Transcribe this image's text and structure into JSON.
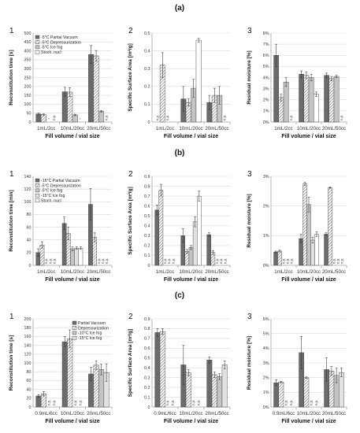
{
  "figure": {
    "sections": [
      "(a)",
      "(b)",
      "(c)"
    ],
    "panel_numbers": [
      "1",
      "2",
      "3"
    ],
    "x_axis_title": "Fill volume / vial size"
  },
  "series_styles": {
    "Partial Vacuum": "dark",
    "Depressurization": "hatch",
    "Ice fog": "light",
    "Stoch. nucl": "white",
    "-10°C Ice fog": "light",
    "-15°C Ice fog": "lighter"
  },
  "chart_data": [
    {
      "type": "bar",
      "section": "(a)",
      "panel": "1",
      "ylabel": "Reconstitution time [s]",
      "ylim": [
        0,
        500
      ],
      "yticks": [
        "0",
        "50",
        "100",
        "150",
        "200",
        "250",
        "300",
        "350",
        "400",
        "450",
        "500"
      ],
      "categories": [
        "1mL/2cc",
        "10mL/20cc",
        "20mL/50cc"
      ],
      "series": [
        {
          "name": "-5°C Partial Vacuum",
          "style": "dark",
          "values": [
            45,
            170,
            380
          ],
          "errors": [
            5,
            25,
            50
          ]
        },
        {
          "name": "-5°C Depressurization",
          "style": "hatch",
          "values": [
            42,
            168,
            372
          ],
          "errors": [
            4,
            25,
            30
          ]
        },
        {
          "name": "-5°C Ice fog",
          "style": "light",
          "values": [
            null,
            40,
            60
          ],
          "errors": [
            null,
            4,
            5
          ]
        },
        {
          "name": "Stoch. nucl",
          "style": "white",
          "values": [
            null,
            null,
            null
          ],
          "errors": [
            null,
            null,
            null
          ]
        }
      ],
      "labels": [
        {
          "series": 2,
          "cat": 0,
          "text": "*"
        },
        {
          "series": 3,
          "cat": 0,
          "text": "n.p."
        },
        {
          "series": 3,
          "cat": 1,
          "text": "*"
        },
        {
          "series": 3,
          "cat": 2,
          "text": "n.p."
        }
      ],
      "legend": "top-left"
    },
    {
      "type": "bar",
      "section": "(a)",
      "panel": "2",
      "ylabel": "Specific Surface Area [m²/g]",
      "ylim": [
        0,
        0.5
      ],
      "yticks": [
        "0",
        "0.1",
        "0.2",
        "0.3",
        "0.4",
        "0.5"
      ],
      "categories": [
        "1mL/2cc",
        "10mL/20cc",
        "20mL/50cc"
      ],
      "series": [
        {
          "name": "-5°C Partial Vacuum",
          "style": "dark",
          "values": [
            null,
            0.13,
            0.11
          ],
          "errors": [
            null,
            0.07,
            0.04
          ]
        },
        {
          "name": "-5°C Depressurization",
          "style": "hatch",
          "values": [
            0.32,
            0.11,
            0.15
          ],
          "errors": [
            0.07,
            0.02,
            0.04
          ]
        },
        {
          "name": "-5°C Ice fog",
          "style": "light",
          "values": [
            null,
            0.19,
            0.15
          ],
          "errors": [
            null,
            0.05,
            0.05
          ]
        },
        {
          "name": "Stoch. nucl",
          "style": "white",
          "values": [
            null,
            0.46,
            null
          ],
          "errors": [
            null,
            0.01,
            null
          ]
        }
      ],
      "labels": [
        {
          "series": 0,
          "cat": 0,
          "text": "n.p."
        },
        {
          "series": 2,
          "cat": 0,
          "text": "n.p."
        },
        {
          "series": 3,
          "cat": 2,
          "text": "n.p."
        }
      ]
    },
    {
      "type": "bar",
      "section": "(a)",
      "panel": "3",
      "ylabel": "Residual moisture [%]",
      "ylim": [
        0,
        8
      ],
      "yticks": [
        "0%",
        "1%",
        "2%",
        "3%",
        "4%",
        "5%",
        "6%",
        "7%",
        "8%"
      ],
      "categories": [
        "1mL/2cc",
        "10mL/20cc",
        "20mL/50cc"
      ],
      "series": [
        {
          "name": "-5°C Partial Vacuum",
          "style": "dark",
          "values": [
            6.0,
            4.3,
            4.2
          ],
          "errors": [
            1.0,
            0.3,
            0.2
          ]
        },
        {
          "name": "-5°C Depressurization",
          "style": "hatch",
          "values": [
            2.2,
            4.2,
            3.9
          ],
          "errors": [
            0.3,
            0.3,
            0.2
          ]
        },
        {
          "name": "-5°C Ice fog",
          "style": "light",
          "values": [
            3.6,
            4.0,
            4.1
          ],
          "errors": [
            0.4,
            0.3,
            0.1
          ]
        },
        {
          "name": "Stoch. nucl",
          "style": "white",
          "values": [
            null,
            2.5,
            null
          ],
          "errors": [
            null,
            0.2,
            null
          ]
        }
      ],
      "labels": [
        {
          "series": 3,
          "cat": 0,
          "text": "n.p."
        },
        {
          "series": 3,
          "cat": 2,
          "text": "n.p."
        }
      ]
    },
    {
      "type": "bar",
      "section": "(b)",
      "panel": "1",
      "ylabel": "Reconstitution time [min]",
      "ylim": [
        0,
        140
      ],
      "yticks": [
        "0",
        "20",
        "40",
        "60",
        "80",
        "100",
        "120",
        "140"
      ],
      "categories": [
        "1mL/2cc",
        "10mL/20cc",
        "20mL/50cc"
      ],
      "series": [
        {
          "name": "-15°C Partial Vacuum",
          "style": "dark",
          "values": [
            20,
            66,
            96
          ],
          "errors": [
            6,
            10,
            25
          ]
        },
        {
          "name": "-5°C Depressurization",
          "style": "hatch",
          "values": [
            32,
            50,
            44
          ],
          "errors": [
            5,
            10,
            7
          ]
        },
        {
          "name": "-5°C Ice fog",
          "style": "light",
          "values": [
            null,
            26,
            null
          ],
          "errors": [
            null,
            3,
            null
          ]
        },
        {
          "name": "-15°C Ice fog",
          "style": "lighter",
          "values": [
            null,
            27,
            null
          ],
          "errors": [
            null,
            2,
            null
          ]
        },
        {
          "name": "Stoch. nucl",
          "style": "white",
          "values": [
            null,
            27,
            null
          ],
          "errors": [
            null,
            2,
            null
          ]
        }
      ],
      "labels": [
        {
          "series": 2,
          "cat": 0,
          "text": "n.p."
        },
        {
          "series": 3,
          "cat": 0,
          "text": "n.p."
        },
        {
          "series": 4,
          "cat": 0,
          "text": "n.p."
        },
        {
          "series": 2,
          "cat": 2,
          "text": "n.p."
        },
        {
          "series": 3,
          "cat": 2,
          "text": "n.p."
        },
        {
          "series": 4,
          "cat": 2,
          "text": "n.p."
        }
      ],
      "legend": "top-left"
    },
    {
      "type": "bar",
      "section": "(b)",
      "panel": "2",
      "ylabel": "Specific Surface Area [m²/g]",
      "ylim": [
        0,
        0.9
      ],
      "yticks": [
        "0",
        "0.1",
        "0.2",
        "0.3",
        "0.4",
        "0.5",
        "0.6",
        "0.7",
        "0.8",
        "0.9"
      ],
      "categories": [
        "1mL/2cc",
        "10mL/20cc",
        "20mL/50cc"
      ],
      "series": [
        {
          "name": "-15°C Partial Vacuum",
          "style": "dark",
          "values": [
            0.56,
            0.3,
            0.31
          ],
          "errors": [
            0.05,
            0.07,
            0.02
          ]
        },
        {
          "name": "-5°C Depressurization",
          "style": "hatch",
          "values": [
            0.76,
            0.14,
            0.13
          ],
          "errors": [
            0.06,
            0.02,
            0.02
          ]
        },
        {
          "name": "-5°C Ice fog",
          "style": "light",
          "values": [
            null,
            0.18,
            null
          ],
          "errors": [
            null,
            0.02,
            null
          ]
        },
        {
          "name": "-15°C Ice fog",
          "style": "lighter",
          "values": [
            null,
            0.44,
            null
          ],
          "errors": [
            null,
            0.05,
            null
          ]
        },
        {
          "name": "Stoch. nucl",
          "style": "white",
          "values": [
            null,
            0.7,
            null
          ],
          "errors": [
            null,
            0.05,
            null
          ]
        }
      ],
      "labels": [
        {
          "series": 2,
          "cat": 0,
          "text": "n.p."
        },
        {
          "series": 3,
          "cat": 0,
          "text": "n.p."
        },
        {
          "series": 4,
          "cat": 0,
          "text": "n.p."
        },
        {
          "series": 2,
          "cat": 2,
          "text": "n.p."
        },
        {
          "series": 3,
          "cat": 2,
          "text": "n.p."
        },
        {
          "series": 4,
          "cat": 2,
          "text": "n.p."
        }
      ]
    },
    {
      "type": "bar",
      "section": "(b)",
      "panel": "3",
      "ylabel": "Residual moisture [%]",
      "ylim": [
        0,
        3
      ],
      "yticks": [
        "0%",
        "1%",
        "2%",
        "3%"
      ],
      "categories": [
        "1mL/2cc",
        "10mL/20cc",
        "20mL/50cc"
      ],
      "series": [
        {
          "name": "-15°C Partial Vacuum",
          "style": "dark",
          "values": [
            0.45,
            0.9,
            1.05
          ],
          "errors": [
            0.03,
            0.15,
            0.05
          ]
        },
        {
          "name": "-5°C Depressurization",
          "style": "hatch",
          "values": [
            0.48,
            2.75,
            2.62
          ],
          "errors": [
            0.03,
            0.05,
            0.02
          ]
        },
        {
          "name": "-5°C Ice fog",
          "style": "light",
          "values": [
            null,
            2.05,
            null
          ],
          "errors": [
            null,
            0.25,
            null
          ]
        },
        {
          "name": "-15°C Ice fog",
          "style": "lighter",
          "values": [
            null,
            0.85,
            null
          ],
          "errors": [
            null,
            0.1,
            null
          ]
        },
        {
          "name": "Stoch. nucl",
          "style": "white",
          "values": [
            null,
            1.05,
            null
          ],
          "errors": [
            null,
            0.08,
            null
          ]
        }
      ],
      "labels": [
        {
          "series": 2,
          "cat": 0,
          "text": "n.p."
        },
        {
          "series": 3,
          "cat": 0,
          "text": "n.p."
        },
        {
          "series": 4,
          "cat": 0,
          "text": "n.p."
        },
        {
          "series": 2,
          "cat": 2,
          "text": "n.p."
        },
        {
          "series": 3,
          "cat": 2,
          "text": "n.p."
        },
        {
          "series": 4,
          "cat": 2,
          "text": "n.p."
        }
      ]
    },
    {
      "type": "bar",
      "section": "(c)",
      "panel": "1",
      "ylabel": "Reconstitution time [s]",
      "ylim": [
        0,
        200
      ],
      "yticks": [
        "0",
        "20",
        "40",
        "60",
        "80",
        "100",
        "120",
        "140",
        "160",
        "180",
        "200"
      ],
      "categories": [
        "0.9mL/6cc",
        "10mL/20cc",
        "20mL/50cc"
      ],
      "series": [
        {
          "name": "Partial Vacuum",
          "style": "dark",
          "values": [
            25,
            148,
            75
          ],
          "errors": [
            3,
            12,
            15
          ]
        },
        {
          "name": "Depressurization",
          "style": "hatch",
          "values": [
            30,
            155,
            95
          ],
          "errors": [
            5,
            20,
            10
          ]
        },
        {
          "name": "-10°C Ice fog",
          "style": "light",
          "values": [
            null,
            null,
            85
          ],
          "errors": [
            null,
            null,
            12
          ]
        },
        {
          "name": "-15°C Ice fog",
          "style": "lighter",
          "values": [
            null,
            null,
            78
          ],
          "errors": [
            null,
            null,
            20
          ]
        }
      ],
      "labels": [
        {
          "series": 2,
          "cat": 0,
          "text": "n.p."
        },
        {
          "series": 3,
          "cat": 0,
          "text": "n.p."
        },
        {
          "series": 2,
          "cat": 1,
          "text": "n.p."
        },
        {
          "series": 3,
          "cat": 1,
          "text": "n.p."
        }
      ],
      "legend": "top-right"
    },
    {
      "type": "bar",
      "section": "(c)",
      "panel": "2",
      "ylabel": "Specific Surface Area [m²/g]",
      "ylim": [
        0,
        0.9
      ],
      "yticks": [
        "0",
        "0.1",
        "0.2",
        "0.3",
        "0.4",
        "0.5",
        "0.6",
        "0.7",
        "0.8",
        "0.9"
      ],
      "categories": [
        "0.9mL/6cc",
        "10mL/20cc",
        "20mL/50cc"
      ],
      "series": [
        {
          "name": "Partial Vacuum",
          "style": "dark",
          "values": [
            0.76,
            0.43,
            0.48
          ],
          "errors": [
            0.04,
            0.2,
            0.03
          ]
        },
        {
          "name": "Depressurization",
          "style": "hatch",
          "values": [
            0.77,
            0.35,
            0.33
          ],
          "errors": [
            0.03,
            0.03,
            0.03
          ]
        },
        {
          "name": "-10°C Ice fog",
          "style": "light",
          "values": [
            null,
            null,
            0.31
          ],
          "errors": [
            null,
            null,
            0.03
          ]
        },
        {
          "name": "-15°C Ice fog",
          "style": "lighter",
          "values": [
            null,
            null,
            0.43
          ],
          "errors": [
            null,
            null,
            0.04
          ]
        }
      ],
      "labels": [
        {
          "series": 2,
          "cat": 0,
          "text": "n.p."
        },
        {
          "series": 3,
          "cat": 0,
          "text": "n.p."
        },
        {
          "series": 2,
          "cat": 1,
          "text": "n.p."
        },
        {
          "series": 3,
          "cat": 1,
          "text": "n.p."
        }
      ]
    },
    {
      "type": "bar",
      "section": "(c)",
      "panel": "3",
      "ylabel": "Residual moisture [%]",
      "ylim": [
        0,
        6
      ],
      "yticks": [
        "0%",
        "1%",
        "2%",
        "3%",
        "4%",
        "5%",
        "6%"
      ],
      "categories": [
        "0.9mL/6cc",
        "10mL/20cc",
        "20mL/50cc"
      ],
      "series": [
        {
          "name": "Partial Vacuum",
          "style": "dark",
          "values": [
            1.65,
            3.7,
            2.55
          ],
          "errors": [
            0.2,
            1.1,
            0.8
          ]
        },
        {
          "name": "Depressurization",
          "style": "hatch",
          "values": [
            1.7,
            2.0,
            2.45
          ],
          "errors": [
            0.05,
            0.05,
            0.3
          ]
        },
        {
          "name": "-10°C Ice fog",
          "style": "light",
          "values": [
            null,
            null,
            2.15
          ],
          "errors": [
            null,
            null,
            0.5
          ]
        },
        {
          "name": "-15°C Ice fog",
          "style": "lighter",
          "values": [
            null,
            null,
            2.35
          ],
          "errors": [
            null,
            null,
            0.3
          ]
        }
      ],
      "labels": [
        {
          "series": 2,
          "cat": 0,
          "text": "n.p."
        },
        {
          "series": 3,
          "cat": 0,
          "text": "n.p."
        },
        {
          "series": 2,
          "cat": 1,
          "text": "n.p."
        },
        {
          "series": 3,
          "cat": 1,
          "text": "n.p."
        }
      ]
    }
  ]
}
